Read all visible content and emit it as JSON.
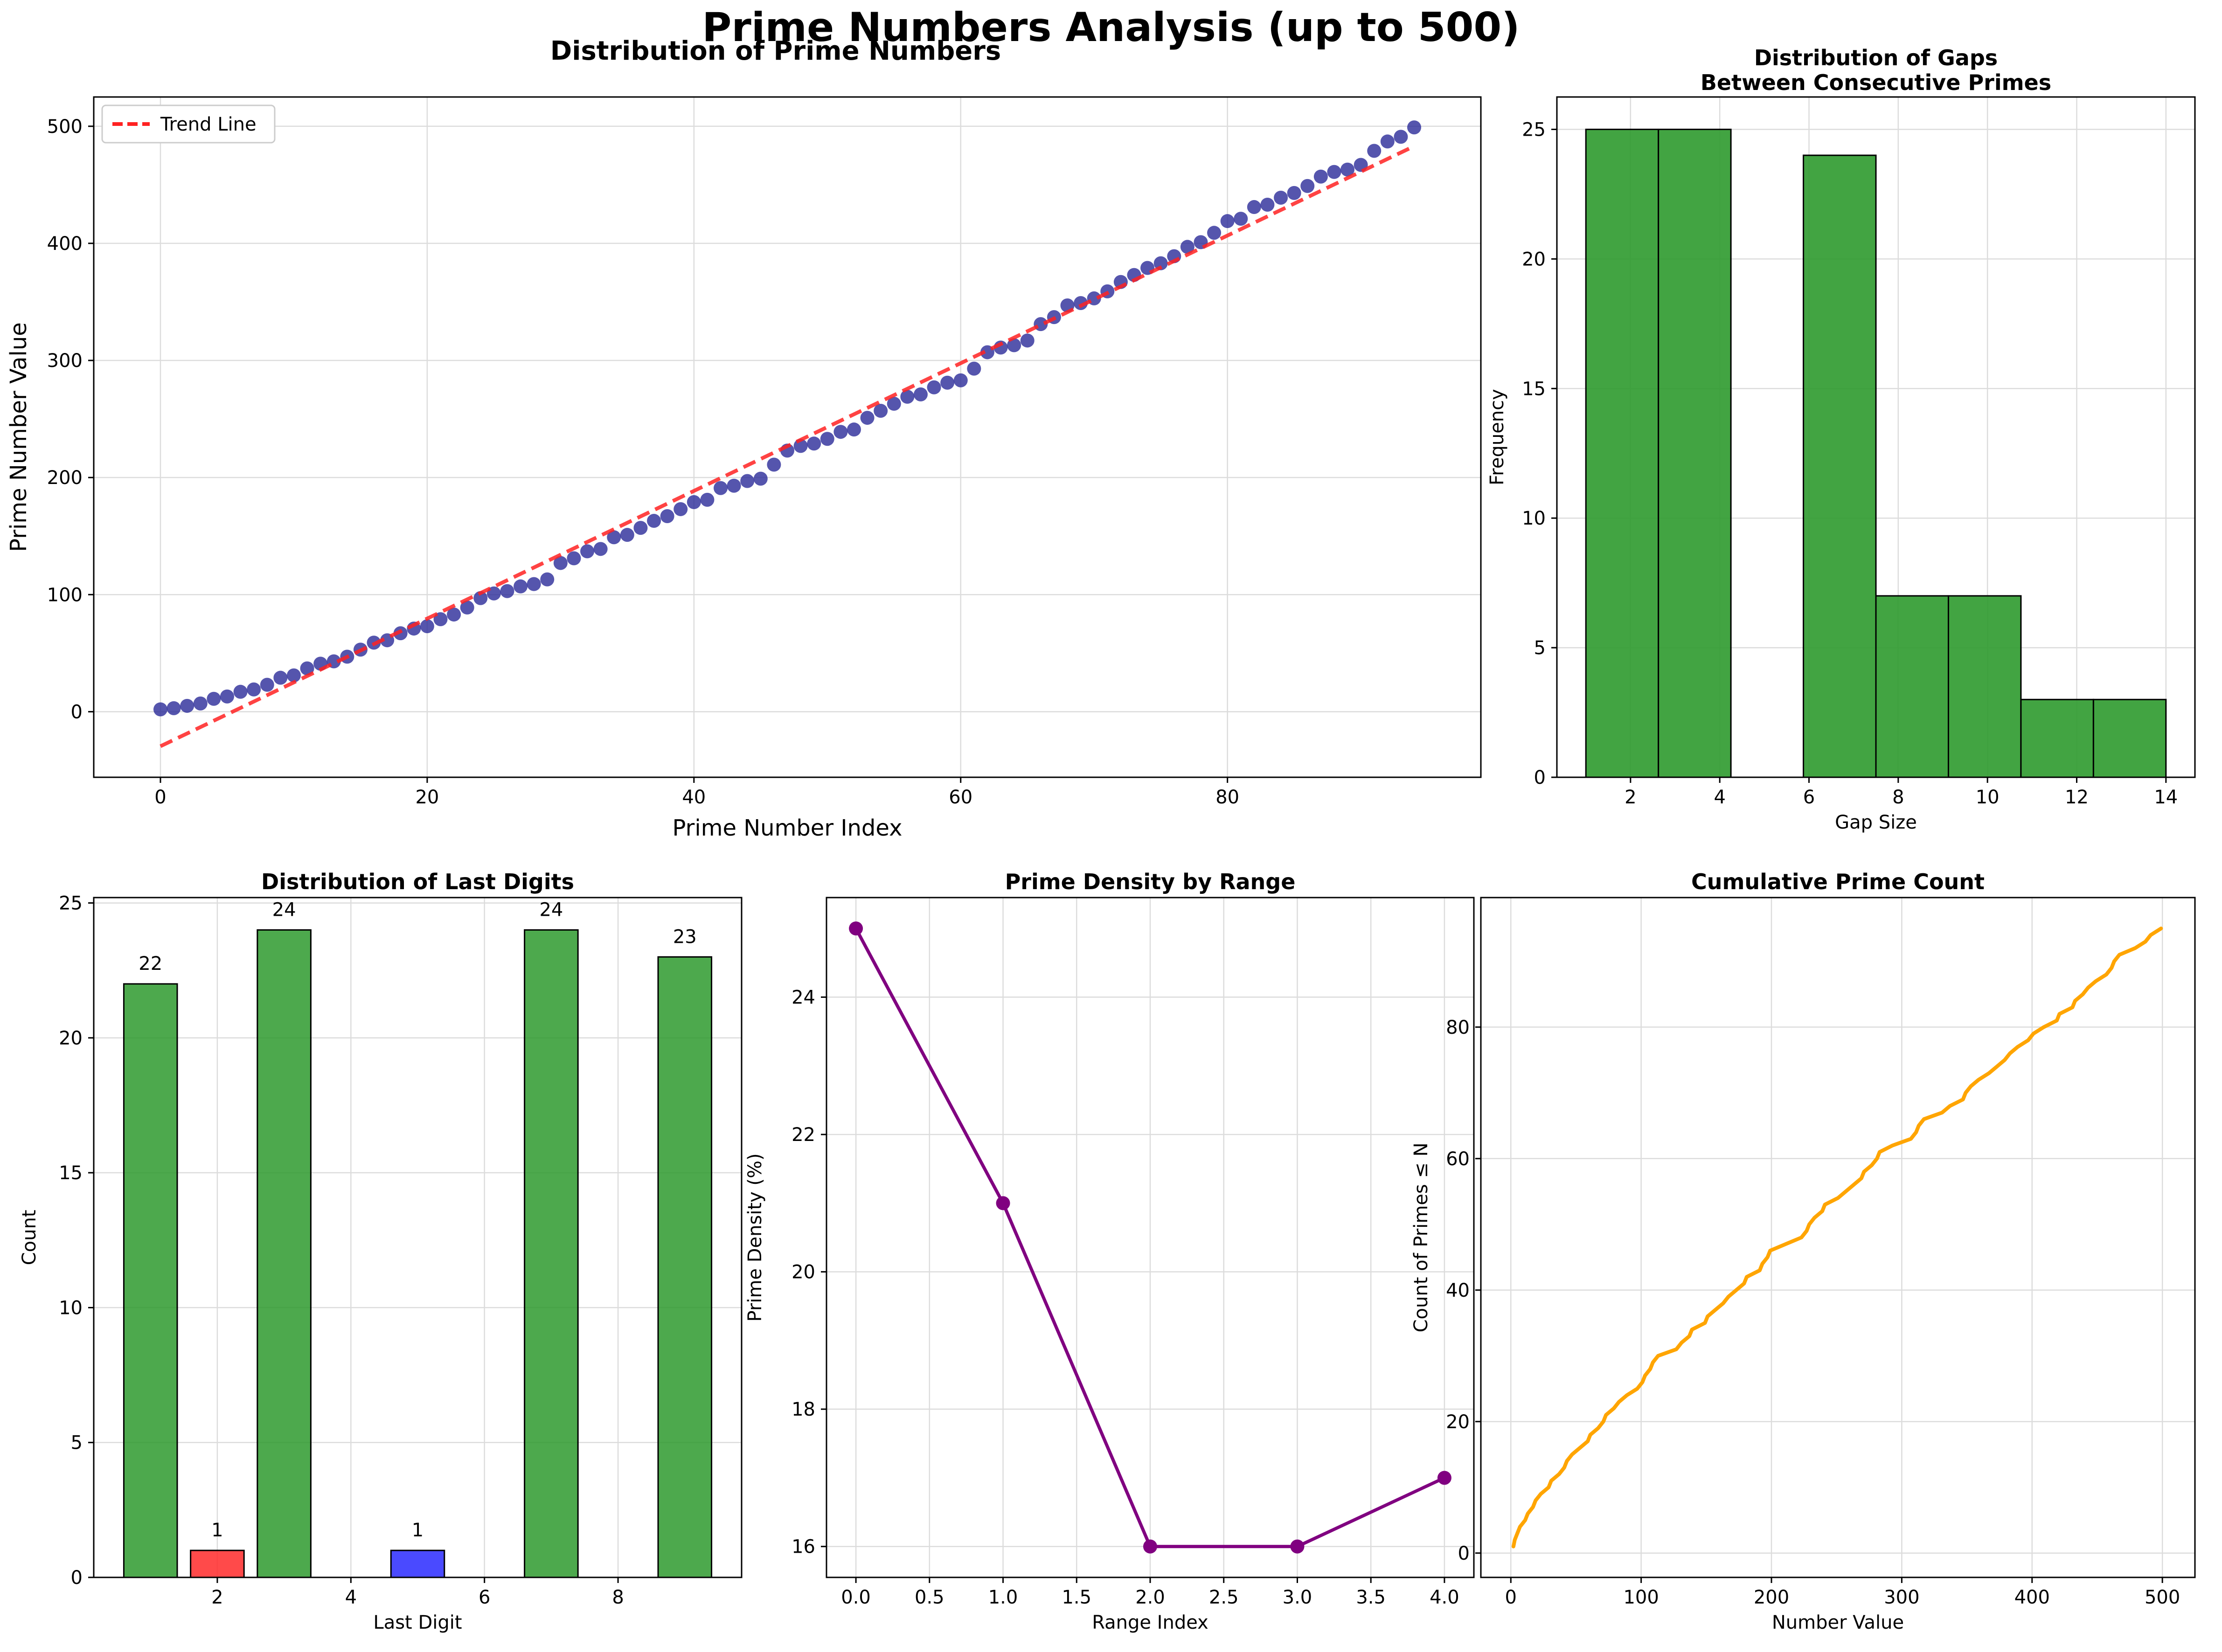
{
  "figure": {
    "title": "Prime Numbers Analysis (up to 500)"
  },
  "chart_data": [
    {
      "type": "scatter",
      "title": "Distribution of Prime Numbers",
      "xlabel": "Prime Number Index",
      "ylabel": "Prime Number Value",
      "xlim": [
        -5,
        99
      ],
      "ylim": [
        -56,
        525
      ],
      "xticks": [
        0,
        20,
        40,
        60,
        80
      ],
      "yticks": [
        0,
        100,
        200,
        300,
        400,
        500
      ],
      "grid": true,
      "legend_position": "top-left",
      "series": [
        {
          "name": "",
          "kind": "scatter",
          "color": "#2b2b99",
          "x_start": 0,
          "values": [
            2,
            3,
            5,
            7,
            11,
            13,
            17,
            19,
            23,
            29,
            31,
            37,
            41,
            43,
            47,
            53,
            59,
            61,
            67,
            71,
            73,
            79,
            83,
            89,
            97,
            101,
            103,
            107,
            109,
            113,
            127,
            131,
            137,
            139,
            149,
            151,
            157,
            163,
            167,
            173,
            179,
            181,
            191,
            193,
            197,
            199,
            211,
            223,
            227,
            229,
            233,
            239,
            241,
            251,
            257,
            263,
            269,
            271,
            277,
            281,
            283,
            293,
            307,
            311,
            313,
            317,
            331,
            337,
            347,
            349,
            353,
            359,
            367,
            373,
            379,
            383,
            389,
            397,
            401,
            409,
            419,
            421,
            431,
            433,
            439,
            443,
            449,
            457,
            461,
            463,
            467,
            479,
            487,
            491,
            499
          ]
        },
        {
          "name": "Trend Line",
          "kind": "line",
          "color": "#ff2222",
          "dashed": true,
          "x": [
            0,
            94
          ],
          "values": [
            -29.5,
            483.0
          ]
        }
      ]
    },
    {
      "type": "bar",
      "title": "Distribution of Gaps\nBetween Consecutive Primes",
      "xlabel": "Gap Size",
      "ylabel": "Frequency",
      "xlim": [
        0.35,
        14.65
      ],
      "ylim": [
        0,
        26.25
      ],
      "xticks": [
        2,
        4,
        6,
        8,
        10,
        12,
        14
      ],
      "yticks": [
        0,
        5,
        10,
        15,
        20,
        25
      ],
      "grid": true,
      "bar_color": "#2e9a2e",
      "bin_edges": [
        1,
        2.625,
        4.25,
        5.875,
        7.5,
        9.125,
        10.75,
        12.375,
        14
      ],
      "values": [
        25,
        25,
        0,
        24,
        7,
        7,
        3,
        3
      ]
    },
    {
      "type": "bar",
      "title": "Distribution of Last Digits",
      "xlabel": "Last Digit",
      "ylabel": "Count",
      "xlim": [
        0.15,
        9.85
      ],
      "ylim": [
        0,
        25.2
      ],
      "xticks": [
        2,
        4,
        6,
        8
      ],
      "yticks": [
        0,
        5,
        10,
        15,
        20,
        25
      ],
      "grid": true,
      "categories": [
        1,
        2,
        3,
        5,
        7,
        9
      ],
      "values": [
        22,
        1,
        24,
        1,
        24,
        23
      ],
      "colors": [
        "#2e9a2e",
        "#ff2a2a",
        "#2e9a2e",
        "#2a2aff",
        "#2e9a2e",
        "#2e9a2e"
      ],
      "data_labels": [
        "22",
        "1",
        "24",
        "1",
        "24",
        "23"
      ]
    },
    {
      "type": "line",
      "title": "Prime Density by Range",
      "xlabel": "Range Index",
      "ylabel": "Prime Density (%)",
      "xlim": [
        -0.2,
        4.2
      ],
      "ylim": [
        15.55,
        25.45
      ],
      "xticks": [
        "0.0",
        "0.5",
        "1.0",
        "1.5",
        "2.0",
        "2.5",
        "3.0",
        "3.5",
        "4.0"
      ],
      "yticks": [
        16,
        18,
        20,
        22,
        24
      ],
      "grid": true,
      "series": [
        {
          "name": "",
          "color": "#800080",
          "x": [
            0,
            1,
            2,
            3,
            4
          ],
          "values": [
            25,
            21,
            16,
            16,
            17
          ]
        }
      ]
    },
    {
      "type": "line",
      "title": "Cumulative Prime Count",
      "xlabel": "Number Value",
      "ylabel": "Count of Primes ≤ N",
      "xlim": [
        -23,
        525
      ],
      "ylim": [
        -3.7,
        99.7
      ],
      "xticks": [
        0,
        100,
        200,
        300,
        400,
        500
      ],
      "yticks": [
        0,
        20,
        40,
        60,
        80
      ],
      "grid": true,
      "series": [
        {
          "name": "",
          "color": "#ffa500",
          "x": "primes from panel 1 (x) vs index+1 (y)",
          "values": "cumulative count 1..95"
        }
      ]
    }
  ]
}
